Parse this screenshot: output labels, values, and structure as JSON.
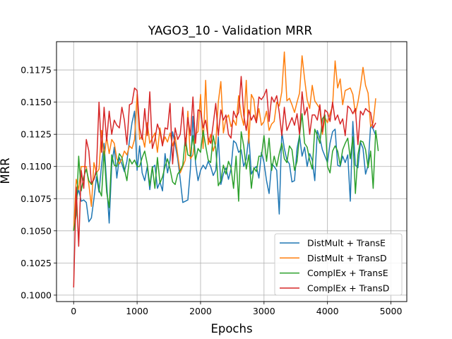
{
  "chart_data": {
    "type": "line",
    "title": "YAGO3_10 - Validation MRR",
    "xlabel": "Epochs",
    "ylabel": "MRR",
    "xlim": [
      -270,
      5250
    ],
    "ylim": [
      0.0995,
      0.1197
    ],
    "xticks": [
      0,
      1000,
      2000,
      3000,
      4000,
      5000
    ],
    "xtick_labels": [
      "0",
      "1000",
      "2000",
      "3000",
      "4000",
      "5000"
    ],
    "yticks": [
      0.1,
      0.1025,
      0.105,
      0.1075,
      0.11,
      0.1125,
      0.115,
      0.1175
    ],
    "ytick_labels": [
      "0.1000",
      "0.1025",
      "0.1050",
      "0.1075",
      "0.1100",
      "0.1125",
      "0.1150",
      "0.1175"
    ],
    "grid": true,
    "legend_position": "bottom-right",
    "x_start": 0,
    "x_step": 40,
    "series": [
      {
        "name": "DistMult + TransE",
        "color": "#1f77b4",
        "values": [
          0.105,
          0.1075,
          0.1082,
          0.1073,
          0.1074,
          0.1072,
          0.1057,
          0.106,
          0.1075,
          0.1092,
          0.108,
          0.1101,
          0.1118,
          0.1087,
          0.1056,
          0.1101,
          0.1115,
          0.1091,
          0.1107,
          0.1102,
          0.1096,
          0.1104,
          0.112,
          0.1134,
          0.1143,
          0.1097,
          0.1116,
          0.1095,
          0.1089,
          0.11,
          0.1082,
          0.1099,
          0.1101,
          0.1083,
          0.1088,
          0.1081,
          0.111,
          0.1095,
          0.1105,
          0.1127,
          0.1117,
          0.1106,
          0.109,
          0.1072,
          0.1073,
          0.1074,
          0.1098,
          0.1139,
          0.1103,
          0.1089,
          0.1097,
          0.1101,
          0.1098,
          0.1104,
          0.11,
          0.1093,
          0.1097,
          0.1123,
          0.1086,
          0.1094,
          0.1099,
          0.109,
          0.1098,
          0.112,
          0.1118,
          0.1111,
          0.1113,
          0.11,
          0.1106,
          0.1124,
          0.1094,
          0.1098,
          0.11,
          0.1091,
          0.1111,
          0.1103,
          0.1089,
          0.1079,
          0.1102,
          0.11,
          0.1097,
          0.1063,
          0.1127,
          0.1114,
          0.1105,
          0.1102,
          0.1088,
          0.1089,
          0.1114,
          0.1124,
          0.1108,
          0.1115,
          0.11,
          0.111,
          0.1105,
          0.1089,
          0.1128,
          0.1122,
          0.1113,
          0.1108,
          0.1103,
          0.1118,
          0.1127,
          0.1129,
          0.1101,
          0.11,
          0.1108,
          0.1103,
          0.1109,
          0.1073,
          0.1135,
          0.1101,
          0.1099,
          0.1119,
          0.1114,
          0.1094,
          0.1101,
          0.1132,
          0.1129,
          0.1124
        ]
      },
      {
        "name": "DistMult + TransD",
        "color": "#ff7f0e",
        "values": [
          0.105,
          0.109,
          0.1082,
          0.11,
          0.11,
          0.11,
          0.1086,
          0.1069,
          0.1103,
          0.1095,
          0.1098,
          0.1128,
          0.1106,
          0.1123,
          0.111,
          0.1121,
          0.1118,
          0.1106,
          0.1102,
          0.1106,
          0.1112,
          0.1109,
          0.1116,
          0.1114,
          0.1121,
          0.1156,
          0.1121,
          0.1124,
          0.1115,
          0.1134,
          0.1118,
          0.1122,
          0.1126,
          0.1111,
          0.113,
          0.1117,
          0.1123,
          0.1119,
          0.1126,
          0.1116,
          0.1123,
          0.1109,
          0.1095,
          0.11,
          0.1105,
          0.1143,
          0.1106,
          0.1109,
          0.1125,
          0.1127,
          0.1156,
          0.1114,
          0.1167,
          0.1117,
          0.1125,
          0.1112,
          0.1118,
          0.115,
          0.1166,
          0.1126,
          0.1137,
          0.114,
          0.1131,
          0.1136,
          0.1132,
          0.1155,
          0.114,
          0.1132,
          0.1167,
          0.1118,
          0.1156,
          0.1152,
          0.1134,
          0.1145,
          0.1132,
          0.1135,
          0.1143,
          0.1128,
          0.1133,
          0.1135,
          0.115,
          0.1147,
          0.1158,
          0.1189,
          0.1151,
          0.1153,
          0.1148,
          0.1142,
          0.115,
          0.1157,
          0.1186,
          0.1168,
          0.1152,
          0.1145,
          0.1163,
          0.1151,
          0.1148,
          0.1145,
          0.1125,
          0.1138,
          0.1134,
          0.1141,
          0.1147,
          0.1182,
          0.1161,
          0.1168,
          0.1148,
          0.1159,
          0.116,
          0.1161,
          0.1156,
          0.1141,
          0.115,
          0.1162,
          0.1177,
          0.1163,
          0.1157,
          0.1131,
          0.1134,
          0.1153
        ]
      },
      {
        "name": "ComplEx + TransE",
        "color": "#2ca02c",
        "values": [
          0.105,
          0.1062,
          0.1108,
          0.1081,
          0.1092,
          0.1098,
          0.1089,
          0.1086,
          0.109,
          0.1096,
          0.1082,
          0.1077,
          0.1112,
          0.108,
          0.1068,
          0.1109,
          0.1101,
          0.11,
          0.111,
          0.1107,
          0.1098,
          0.1089,
          0.1106,
          0.1102,
          0.1105,
          0.11,
          0.11,
          0.1107,
          0.1112,
          0.1102,
          0.1085,
          0.11,
          0.1083,
          0.1107,
          0.1087,
          0.1092,
          0.11,
          0.1106,
          0.1098,
          0.1088,
          0.1086,
          0.1094,
          0.1097,
          0.1101,
          0.1122,
          0.1109,
          0.1108,
          0.1124,
          0.1105,
          0.1114,
          0.1111,
          0.1128,
          0.1116,
          0.1105,
          0.1103,
          0.1124,
          0.1114,
          0.1085,
          0.1089,
          0.1101,
          0.1094,
          0.1104,
          0.1099,
          0.1083,
          0.1108,
          0.1073,
          0.1127,
          0.1116,
          0.1098,
          0.1109,
          0.1083,
          0.1099,
          0.1096,
          0.1108,
          0.1108,
          0.1124,
          0.1104,
          0.1122,
          0.1097,
          0.1108,
          0.11,
          0.111,
          0.1118,
          0.1106,
          0.1103,
          0.1116,
          0.1113,
          0.1097,
          0.1104,
          0.1124,
          0.1141,
          0.1118,
          0.1115,
          0.1105,
          0.1098,
          0.1129,
          0.1124,
          0.1118,
          0.1137,
          0.114,
          0.11,
          0.1095,
          0.1112,
          0.1116,
          0.1112,
          0.1101,
          0.1113,
          0.1118,
          0.1122,
          0.1106,
          0.1123,
          0.1079,
          0.1109,
          0.112,
          0.1119,
          0.1113,
          0.1099,
          0.1112,
          0.1083,
          0.1128,
          0.1112
        ]
      },
      {
        "name": "ComplEx + TransD",
        "color": "#d62728",
        "values": [
          0.1006,
          0.1084,
          0.1038,
          0.1097,
          0.1083,
          0.1121,
          0.1112,
          0.1087,
          0.109,
          0.1098,
          0.115,
          0.1111,
          0.1146,
          0.112,
          0.1143,
          0.1125,
          0.1136,
          0.1132,
          0.113,
          0.1146,
          0.1136,
          0.1117,
          0.1148,
          0.1149,
          0.1161,
          0.1159,
          0.113,
          0.1121,
          0.1145,
          0.1124,
          0.1158,
          0.1114,
          0.1121,
          0.1133,
          0.1127,
          0.1116,
          0.113,
          0.1129,
          0.1149,
          0.1102,
          0.113,
          0.1121,
          0.1125,
          0.1146,
          0.1116,
          0.1138,
          0.1124,
          0.1154,
          0.1118,
          0.1144,
          0.1143,
          0.113,
          0.1136,
          0.1122,
          0.1118,
          0.1133,
          0.1149,
          0.1124,
          0.1144,
          0.1136,
          0.114,
          0.1125,
          0.1122,
          0.1143,
          0.1138,
          0.1142,
          0.117,
          0.114,
          0.1128,
          0.1144,
          0.1136,
          0.114,
          0.1134,
          0.1154,
          0.1152,
          0.1155,
          0.116,
          0.1135,
          0.1154,
          0.115,
          0.1155,
          0.1142,
          0.1124,
          0.1146,
          0.1128,
          0.1133,
          0.1138,
          0.1132,
          0.1141,
          0.1125,
          0.1158,
          0.114,
          0.1146,
          0.1125,
          0.114,
          0.114,
          0.1136,
          0.1148,
          0.1127,
          0.1144,
          0.1142,
          0.1135,
          0.115,
          0.1136,
          0.114,
          0.1133,
          0.1137,
          0.1124,
          0.1147,
          0.1145,
          0.1141,
          0.1145,
          0.1117,
          0.1143,
          0.114,
          0.1145,
          0.1143,
          0.1142,
          0.113,
          0.1134
        ]
      }
    ]
  }
}
